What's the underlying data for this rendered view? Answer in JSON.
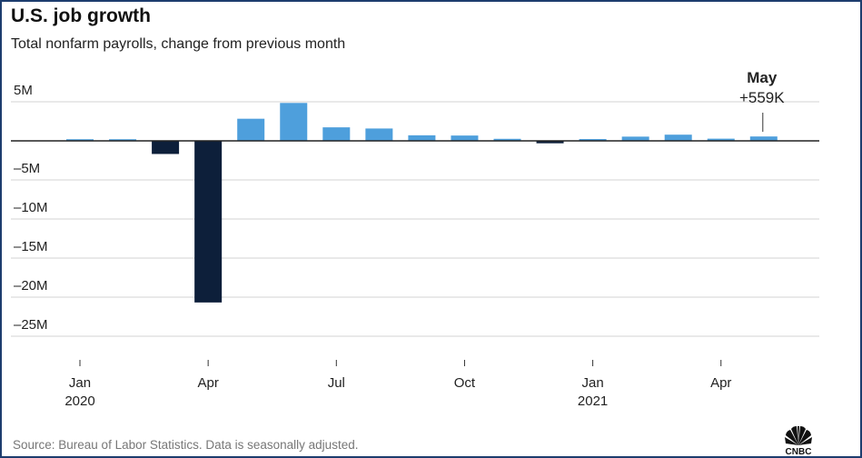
{
  "header": {
    "title": "U.S. job growth",
    "subtitle": "Total nonfarm payrolls, change from previous month"
  },
  "footer": {
    "source": "Source: Bureau of Labor Statistics. Data is seasonally adjusted.",
    "logo_text": "CNBC"
  },
  "annotation": {
    "label": "May",
    "value": "+559K"
  },
  "colors": {
    "positive_bar": "#4e9fdc",
    "negative_bar": "#0d1f3a",
    "gridline": "#d3d3d3",
    "zero_line": "#222222",
    "frame": "#1d3d6e"
  },
  "chart_data": {
    "type": "bar",
    "title": "U.S. job growth",
    "subtitle": "Total nonfarm payrolls, change from previous month",
    "xlabel": "",
    "ylabel": "",
    "unit": "millions of jobs",
    "ylim": [
      -25,
      5
    ],
    "yticks": [
      5,
      -5,
      -10,
      -15,
      -20,
      -25
    ],
    "ytick_labels": [
      "5M",
      "–5M",
      "–10M",
      "–15M",
      "–20M",
      "–25M"
    ],
    "grid": true,
    "categories": [
      "Jan 2020",
      "Feb 2020",
      "Mar 2020",
      "Apr 2020",
      "May 2020",
      "Jun 2020",
      "Jul 2020",
      "Aug 2020",
      "Sep 2020",
      "Oct 2020",
      "Nov 2020",
      "Dec 2020",
      "Jan 2021",
      "Feb 2021",
      "Mar 2021",
      "Apr 2021",
      "May 2021"
    ],
    "values": [
      0.21,
      0.21,
      -1.68,
      -20.68,
      2.83,
      4.85,
      1.73,
      1.58,
      0.71,
      0.68,
      0.26,
      -0.31,
      0.23,
      0.54,
      0.79,
      0.28,
      0.56
    ],
    "x_tick_labels": [
      {
        "index": 0,
        "line1": "Jan",
        "line2": "2020"
      },
      {
        "index": 3,
        "line1": "Apr",
        "line2": ""
      },
      {
        "index": 6,
        "line1": "Jul",
        "line2": ""
      },
      {
        "index": 9,
        "line1": "Oct",
        "line2": ""
      },
      {
        "index": 12,
        "line1": "Jan",
        "line2": "2021"
      },
      {
        "index": 15,
        "line1": "Apr",
        "line2": ""
      }
    ],
    "highlight_index": 3,
    "annotated_index": 16
  }
}
